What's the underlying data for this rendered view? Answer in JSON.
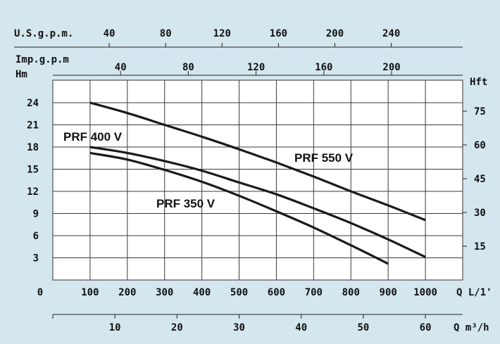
{
  "chart_data": {
    "type": "line",
    "grid": true,
    "x_primary": {
      "label": "Q L/1'",
      "ticks": [
        0,
        100,
        200,
        300,
        400,
        500,
        600,
        700,
        800,
        900,
        1000
      ],
      "range": [
        0,
        1100
      ]
    },
    "x_secondary_bottom": {
      "label": "Q m³/h",
      "ticks": [
        10,
        20,
        30,
        40,
        50,
        60
      ],
      "range": [
        0,
        66
      ]
    },
    "x_secondary_top_usgpm": {
      "label": "U.S.g.p.m.",
      "ticks": [
        40,
        80,
        120,
        160,
        200,
        240
      ],
      "range": [
        0,
        290.6
      ]
    },
    "x_secondary_top_impgpm": {
      "label": "Imp.g.p.m",
      "ticks": [
        40,
        80,
        120,
        160,
        200
      ],
      "range": [
        0,
        242
      ]
    },
    "y_left": {
      "label": "Hm",
      "ticks": [
        3,
        6,
        9,
        12,
        15,
        18,
        21,
        24
      ],
      "range": [
        0,
        27
      ]
    },
    "y_right": {
      "label": "Hft",
      "ticks": [
        15,
        30,
        45,
        60,
        75
      ],
      "range": [
        0,
        88.6
      ]
    },
    "series": [
      {
        "name": "PRF 550 V",
        "x": [
          100,
          200,
          300,
          400,
          500,
          600,
          700,
          800,
          900,
          1000
        ],
        "y": [
          24,
          22.6,
          21,
          19.4,
          17.7,
          15.9,
          14,
          12,
          10.1,
          8.1
        ]
      },
      {
        "name": "PRF 400 V",
        "x": [
          100,
          200,
          300,
          400,
          500,
          600,
          700,
          800,
          900,
          1000
        ],
        "y": [
          18,
          17.2,
          16.1,
          14.8,
          13.2,
          11.6,
          9.7,
          7.7,
          5.5,
          3.1
        ]
      },
      {
        "name": "PRF 350 V",
        "x": [
          100,
          200,
          300,
          400,
          500,
          600,
          700,
          800,
          900
        ],
        "y": [
          17.2,
          16.3,
          14.9,
          13.3,
          11.4,
          9.3,
          7.1,
          4.7,
          2.2
        ]
      }
    ]
  }
}
